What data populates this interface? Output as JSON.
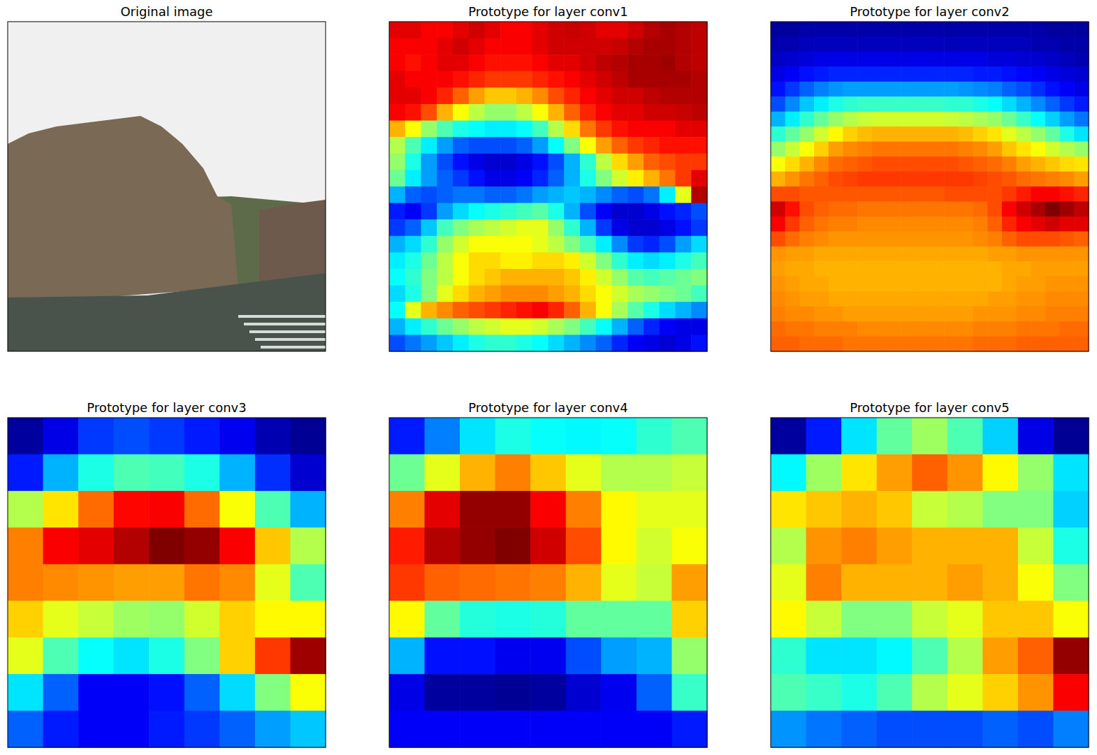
{
  "chart_data": [
    {
      "type": "image",
      "title": "Original image",
      "tick_labels": false
    },
    {
      "type": "heatmap",
      "title": "Prototype for layer conv1",
      "tick_labels": false,
      "color_range": [
        0,
        100
      ],
      "cells": [
        [
          90,
          90,
          88,
          88,
          90,
          92,
          90,
          88,
          88,
          90,
          92,
          93,
          92,
          90,
          90,
          92,
          95,
          96,
          95,
          94
        ],
        [
          88,
          88,
          88,
          90,
          92,
          90,
          88,
          88,
          88,
          90,
          92,
          92,
          92,
          92,
          93,
          95,
          96,
          96,
          95,
          94
        ],
        [
          88,
          86,
          88,
          90,
          90,
          88,
          86,
          86,
          86,
          88,
          90,
          90,
          92,
          94,
          95,
          96,
          96,
          97,
          95,
          94
        ],
        [
          90,
          88,
          88,
          88,
          86,
          84,
          82,
          82,
          82,
          84,
          86,
          88,
          90,
          92,
          94,
          96,
          96,
          96,
          96,
          95
        ],
        [
          90,
          90,
          88,
          84,
          78,
          72,
          68,
          68,
          70,
          74,
          80,
          84,
          88,
          90,
          92,
          92,
          94,
          95,
          95,
          95
        ],
        [
          88,
          86,
          80,
          70,
          62,
          56,
          52,
          52,
          56,
          62,
          70,
          78,
          84,
          88,
          90,
          90,
          92,
          92,
          93,
          94
        ],
        [
          70,
          62,
          52,
          45,
          40,
          38,
          36,
          36,
          38,
          44,
          55,
          66,
          76,
          82,
          86,
          88,
          88,
          88,
          90,
          90
        ],
        [
          55,
          45,
          36,
          28,
          22,
          20,
          20,
          20,
          22,
          28,
          38,
          50,
          62,
          72,
          78,
          82,
          84,
          86,
          86,
          86
        ],
        [
          52,
          40,
          28,
          20,
          14,
          10,
          8,
          8,
          10,
          14,
          20,
          30,
          42,
          56,
          66,
          72,
          78,
          80,
          82,
          82
        ],
        [
          48,
          36,
          28,
          22,
          18,
          14,
          10,
          10,
          12,
          16,
          22,
          30,
          40,
          50,
          58,
          64,
          70,
          76,
          82,
          90
        ],
        [
          30,
          22,
          20,
          22,
          24,
          24,
          22,
          22,
          24,
          28,
          30,
          32,
          30,
          26,
          22,
          20,
          24,
          36,
          60,
          95
        ],
        [
          15,
          12,
          18,
          28,
          34,
          38,
          40,
          42,
          44,
          46,
          40,
          30,
          20,
          12,
          8,
          8,
          10,
          14,
          16,
          20
        ],
        [
          18,
          22,
          32,
          44,
          50,
          54,
          56,
          58,
          60,
          60,
          52,
          42,
          30,
          18,
          10,
          8,
          8,
          10,
          14,
          18
        ],
        [
          30,
          34,
          42,
          52,
          58,
          62,
          62,
          62,
          62,
          60,
          56,
          50,
          44,
          36,
          26,
          18,
          16,
          20,
          28,
          34
        ],
        [
          36,
          40,
          48,
          56,
          62,
          66,
          66,
          64,
          64,
          66,
          66,
          64,
          58,
          50,
          42,
          36,
          34,
          36,
          40,
          44
        ],
        [
          38,
          42,
          50,
          56,
          62,
          66,
          68,
          70,
          70,
          70,
          70,
          68,
          64,
          58,
          52,
          46,
          44,
          46,
          48,
          50
        ],
        [
          34,
          40,
          50,
          60,
          66,
          70,
          72,
          74,
          74,
          74,
          72,
          70,
          66,
          62,
          58,
          54,
          52,
          50,
          48,
          44
        ],
        [
          38,
          60,
          70,
          74,
          78,
          80,
          82,
          84,
          86,
          88,
          84,
          78,
          70,
          62,
          54,
          46,
          40,
          34,
          30,
          26
        ],
        [
          30,
          36,
          42,
          48,
          52,
          56,
          58,
          60,
          60,
          58,
          54,
          50,
          44,
          38,
          30,
          22,
          16,
          12,
          10,
          10
        ],
        [
          20,
          24,
          28,
          32,
          36,
          40,
          42,
          42,
          40,
          38,
          34,
          30,
          26,
          22,
          16,
          12,
          10,
          8,
          10,
          14
        ]
      ]
    },
    {
      "type": "heatmap",
      "title": "Prototype for layer conv2",
      "tick_labels": false,
      "color_range": [
        0,
        100
      ],
      "cells": [
        [
          3,
          3,
          4,
          4,
          4,
          4,
          4,
          4,
          4,
          4,
          4,
          4,
          4,
          4,
          4,
          4,
          4,
          4,
          4,
          3,
          3,
          3
        ],
        [
          5,
          5,
          6,
          6,
          6,
          6,
          6,
          6,
          6,
          6,
          6,
          6,
          6,
          6,
          6,
          6,
          6,
          6,
          5,
          5,
          4,
          4
        ],
        [
          7,
          8,
          9,
          10,
          10,
          10,
          10,
          10,
          10,
          10,
          10,
          10,
          10,
          10,
          10,
          9,
          9,
          8,
          8,
          7,
          6,
          5
        ],
        [
          10,
          12,
          14,
          15,
          16,
          16,
          16,
          16,
          16,
          16,
          16,
          16,
          16,
          16,
          15,
          15,
          14,
          13,
          12,
          10,
          9,
          8
        ],
        [
          14,
          18,
          22,
          25,
          27,
          28,
          28,
          28,
          28,
          28,
          28,
          28,
          28,
          27,
          26,
          25,
          22,
          20,
          17,
          14,
          12,
          10
        ],
        [
          20,
          26,
          32,
          36,
          40,
          42,
          43,
          43,
          43,
          43,
          43,
          43,
          42,
          42,
          40,
          38,
          34,
          30,
          26,
          22,
          18,
          15
        ],
        [
          30,
          36,
          42,
          47,
          52,
          55,
          57,
          58,
          58,
          58,
          58,
          58,
          57,
          56,
          54,
          52,
          48,
          43,
          38,
          33,
          28,
          24
        ],
        [
          42,
          47,
          52,
          58,
          63,
          67,
          69,
          70,
          70,
          70,
          70,
          70,
          70,
          69,
          67,
          65,
          60,
          56,
          52,
          47,
          40,
          35
        ],
        [
          52,
          57,
          62,
          67,
          72,
          74,
          75,
          76,
          76,
          76,
          76,
          76,
          76,
          75,
          74,
          72,
          68,
          65,
          62,
          58,
          55,
          52
        ],
        [
          62,
          66,
          70,
          74,
          77,
          78,
          79,
          80,
          80,
          80,
          80,
          80,
          80,
          79,
          78,
          77,
          75,
          72,
          70,
          68,
          66,
          65
        ],
        [
          70,
          73,
          76,
          78,
          80,
          81,
          82,
          82,
          82,
          82,
          82,
          82,
          82,
          82,
          81,
          80,
          79,
          77,
          76,
          75,
          74,
          72
        ],
        [
          80,
          80,
          79,
          79,
          79,
          79,
          79,
          79,
          79,
          79,
          79,
          79,
          80,
          80,
          80,
          80,
          82,
          85,
          88,
          88,
          86,
          84
        ],
        [
          92,
          86,
          80,
          78,
          77,
          77,
          76,
          76,
          76,
          76,
          76,
          76,
          76,
          76,
          77,
          80,
          88,
          92,
          96,
          100,
          97,
          94
        ],
        [
          88,
          82,
          78,
          76,
          75,
          75,
          74,
          74,
          74,
          74,
          74,
          74,
          74,
          74,
          75,
          78,
          84,
          88,
          90,
          92,
          90,
          90
        ],
        [
          80,
          77,
          75,
          74,
          73,
          73,
          73,
          73,
          73,
          73,
          73,
          73,
          73,
          73,
          74,
          75,
          78,
          80,
          80,
          80,
          79,
          78
        ],
        [
          73,
          72,
          72,
          71,
          71,
          71,
          71,
          71,
          71,
          71,
          71,
          71,
          71,
          71,
          71,
          72,
          72,
          73,
          73,
          73,
          73,
          73
        ],
        [
          72,
          71,
          71,
          70,
          70,
          70,
          70,
          70,
          70,
          70,
          70,
          70,
          70,
          70,
          70,
          70,
          71,
          71,
          72,
          72,
          72,
          72
        ],
        [
          73,
          72,
          71,
          71,
          70,
          70,
          70,
          70,
          70,
          70,
          70,
          70,
          70,
          70,
          70,
          70,
          71,
          72,
          72,
          73,
          73,
          73
        ],
        [
          74,
          73,
          72,
          72,
          71,
          71,
          71,
          71,
          71,
          71,
          71,
          71,
          71,
          71,
          71,
          72,
          72,
          73,
          73,
          74,
          74,
          74
        ],
        [
          75,
          74,
          74,
          73,
          73,
          72,
          72,
          72,
          72,
          72,
          72,
          72,
          72,
          72,
          73,
          73,
          73,
          74,
          74,
          75,
          75,
          75
        ],
        [
          77,
          76,
          76,
          75,
          75,
          75,
          74,
          74,
          74,
          74,
          74,
          74,
          74,
          74,
          75,
          75,
          75,
          76,
          76,
          76,
          77,
          77
        ],
        [
          78,
          78,
          77,
          77,
          77,
          76,
          76,
          76,
          76,
          76,
          76,
          76,
          76,
          76,
          77,
          77,
          77,
          78,
          78,
          78,
          78,
          78
        ]
      ]
    },
    {
      "type": "heatmap",
      "title": "Prototype for layer conv3",
      "tick_labels": false,
      "color_range": [
        0,
        100
      ],
      "cells": [
        [
          3,
          10,
          18,
          20,
          18,
          15,
          11,
          5,
          2
        ],
        [
          15,
          30,
          40,
          45,
          44,
          40,
          30,
          17,
          8
        ],
        [
          55,
          65,
          77,
          87,
          88,
          77,
          62,
          45,
          30
        ],
        [
          75,
          88,
          90,
          95,
          100,
          98,
          88,
          68,
          55
        ],
        [
          75,
          74,
          73,
          72,
          72,
          76,
          74,
          60,
          45
        ],
        [
          67,
          60,
          57,
          53,
          52,
          58,
          67,
          63,
          63
        ],
        [
          60,
          45,
          38,
          35,
          40,
          50,
          67,
          82,
          97
        ],
        [
          35,
          22,
          12,
          12,
          14,
          22,
          34,
          50,
          62
        ],
        [
          22,
          15,
          12,
          12,
          15,
          18,
          22,
          28,
          32
        ]
      ]
    },
    {
      "type": "heatmap",
      "title": "Prototype for layer conv4",
      "tick_labels": false,
      "color_range": [
        0,
        100
      ],
      "cells": [
        [
          15,
          25,
          35,
          40,
          38,
          37,
          38,
          42,
          45
        ],
        [
          48,
          60,
          70,
          75,
          68,
          60,
          55,
          55,
          57
        ],
        [
          75,
          90,
          98,
          98,
          88,
          75,
          63,
          60,
          60
        ],
        [
          85,
          95,
          98,
          100,
          92,
          80,
          63,
          58,
          62
        ],
        [
          82,
          78,
          77,
          76,
          75,
          70,
          60,
          57,
          72
        ],
        [
          63,
          47,
          41,
          40,
          41,
          47,
          47,
          47,
          67
        ],
        [
          30,
          14,
          14,
          11,
          11,
          20,
          28,
          30,
          52
        ],
        [
          10,
          3,
          3,
          2,
          3,
          8,
          11,
          22,
          43
        ],
        [
          12,
          12,
          12,
          12,
          12,
          12,
          12,
          12,
          15
        ]
      ]
    },
    {
      "type": "heatmap",
      "title": "Prototype for layer conv5",
      "tick_labels": false,
      "color_range": [
        0,
        100
      ],
      "cells": [
        [
          3,
          15,
          35,
          47,
          53,
          45,
          33,
          10,
          2
        ],
        [
          37,
          53,
          65,
          72,
          78,
          73,
          63,
          52,
          35
        ],
        [
          65,
          68,
          70,
          68,
          57,
          55,
          50,
          50,
          33
        ],
        [
          55,
          73,
          75,
          72,
          70,
          70,
          70,
          57,
          40
        ],
        [
          60,
          75,
          70,
          70,
          70,
          72,
          70,
          62,
          50
        ],
        [
          63,
          57,
          50,
          50,
          57,
          60,
          68,
          68,
          62
        ],
        [
          42,
          35,
          35,
          37,
          45,
          55,
          72,
          78,
          98
        ],
        [
          45,
          43,
          40,
          45,
          55,
          60,
          67,
          73,
          88
        ],
        [
          27,
          24,
          22,
          20,
          20,
          20,
          22,
          20,
          25
        ]
      ]
    }
  ]
}
